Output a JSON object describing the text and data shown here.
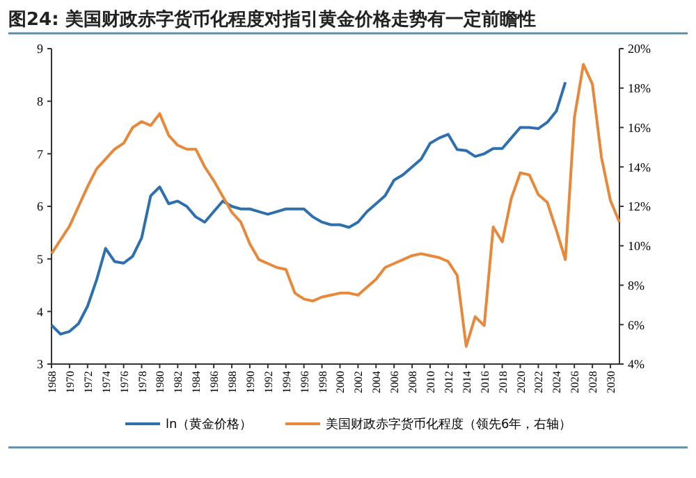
{
  "chart_data": {
    "type": "line",
    "title": "图24: 美国财政赤字货币化程度对指引黄金价格走势有一定前瞻性",
    "x": [
      1968,
      1969,
      1970,
      1971,
      1972,
      1973,
      1974,
      1975,
      1976,
      1977,
      1978,
      1979,
      1980,
      1981,
      1982,
      1983,
      1984,
      1985,
      1986,
      1987,
      1988,
      1989,
      1990,
      1991,
      1992,
      1993,
      1994,
      1995,
      1996,
      1997,
      1998,
      1999,
      2000,
      2001,
      2002,
      2003,
      2004,
      2005,
      2006,
      2007,
      2008,
      2009,
      2010,
      2011,
      2012,
      2013,
      2014,
      2015,
      2016,
      2017,
      2018,
      2019,
      2020,
      2021,
      2022,
      2023,
      2024,
      2025
    ],
    "series": [
      {
        "name": "ln（黄金价格）",
        "color": "#2e6fad",
        "values": [
          3.74,
          3.57,
          3.62,
          3.77,
          4.1,
          4.6,
          5.2,
          4.95,
          4.92,
          5.05,
          5.4,
          6.2,
          6.37,
          6.05,
          6.1,
          6.0,
          5.8,
          5.7,
          5.9,
          6.1,
          6.0,
          5.95,
          5.95,
          5.9,
          5.85,
          5.9,
          5.95,
          5.95,
          5.95,
          5.8,
          5.7,
          5.65,
          5.65,
          5.6,
          5.7,
          5.9,
          6.05,
          6.2,
          6.5,
          6.6,
          6.75,
          6.9,
          7.2,
          7.3,
          7.37,
          7.08,
          7.06,
          6.95,
          7.0,
          7.1,
          7.1,
          7.3,
          7.5,
          7.5,
          7.48,
          7.6,
          7.81,
          8.36
        ]
      },
      {
        "name": "美国财政赤字货币化程度（领先6年，右轴）",
        "color": "#e8883a",
        "axis": "y2",
        "x": [
          1968,
          1969,
          1970,
          1971,
          1972,
          1973,
          1974,
          1975,
          1976,
          1977,
          1978,
          1979,
          1980,
          1981,
          1982,
          1983,
          1984,
          1985,
          1986,
          1987,
          1988,
          1989,
          1990,
          1991,
          1992,
          1993,
          1994,
          1995,
          1996,
          1997,
          1998,
          1999,
          2000,
          2001,
          2002,
          2003,
          2004,
          2005,
          2006,
          2007,
          2008,
          2009,
          2010,
          2011,
          2012,
          2013,
          2014,
          2015,
          2016,
          2017,
          2018,
          2019,
          2020,
          2021,
          2022,
          2023,
          2024,
          2025,
          2026,
          2027,
          2028,
          2029,
          2030,
          2031
        ],
        "values": [
          9.6,
          10.3,
          11,
          12,
          13,
          13.9,
          14.4,
          14.9,
          15.2,
          16,
          16.3,
          16.1,
          16.7,
          15.6,
          15.1,
          14.9,
          14.9,
          14,
          13.3,
          12.5,
          11.7,
          11.2,
          10.1,
          9.3,
          9.1,
          8.9,
          8.8,
          7.6,
          7.3,
          7.2,
          7.4,
          7.5,
          7.6,
          7.6,
          7.5,
          7.9,
          8.3,
          8.9,
          9.1,
          9.3,
          9.5,
          9.6,
          9.5,
          9.4,
          9.2,
          8.5,
          4.9,
          6.4,
          5.95,
          10.95,
          10.2,
          12.4,
          13.7,
          13.6,
          12.6,
          12.2,
          10.8,
          9.3,
          16.5,
          19.2,
          18.2,
          14.5,
          12.3,
          11.2
        ]
      }
    ],
    "xlim": [
      1968,
      2031
    ],
    "xticks": [
      1968,
      1970,
      1972,
      1974,
      1976,
      1978,
      1980,
      1982,
      1984,
      1986,
      1988,
      1990,
      1992,
      1994,
      1996,
      1998,
      2000,
      2002,
      2004,
      2006,
      2008,
      2010,
      2012,
      2014,
      2016,
      2018,
      2020,
      2022,
      2024,
      2026,
      2028,
      2030
    ],
    "ylim": [
      3,
      9
    ],
    "yticks": [
      3,
      4,
      5,
      6,
      7,
      8,
      9
    ],
    "y2lim": [
      4,
      20
    ],
    "y2ticks": [
      {
        "value": 4,
        "label": "4%"
      },
      {
        "value": 6,
        "label": "6%"
      },
      {
        "value": 8,
        "label": "8%"
      },
      {
        "value": 10,
        "label": "10%"
      },
      {
        "value": 12,
        "label": "12%"
      },
      {
        "value": 14,
        "label": "14%"
      },
      {
        "value": 16,
        "label": "16%"
      },
      {
        "value": 18,
        "label": "18%"
      },
      {
        "value": 20,
        "label": "20%"
      }
    ],
    "legend": "bottom",
    "grid": false
  }
}
